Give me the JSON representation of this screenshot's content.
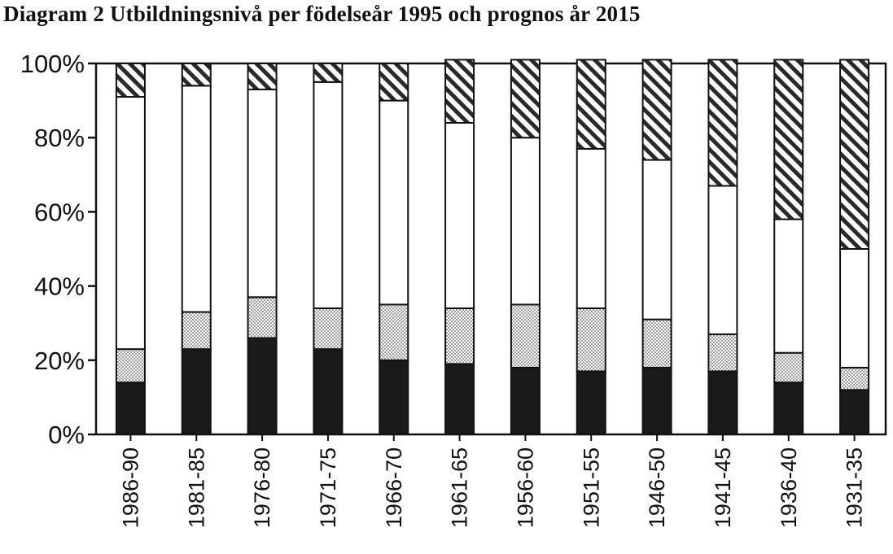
{
  "chart_data": {
    "type": "bar",
    "stacked": true,
    "title": "Diagram 2  Utbildningsnivå per födelseår 1995 och prognos år 2015",
    "xlabel": "",
    "ylabel": "",
    "ylim": [
      0,
      100
    ],
    "y_ticks": [
      "0%",
      "20%",
      "40%",
      "60%",
      "80%",
      "100%"
    ],
    "categories": [
      "1986-90",
      "1981-85",
      "1976-80",
      "1971-75",
      "1966-70",
      "1961-65",
      "1956-60",
      "1951-55",
      "1946-50",
      "1941-45",
      "1936-40",
      "1931-35"
    ],
    "series": [
      {
        "values": [
          14,
          23,
          26,
          23,
          20,
          19,
          18,
          17,
          18,
          17,
          14,
          12
        ],
        "color": "#1a1a1a",
        "pattern": "solid"
      },
      {
        "values": [
          9,
          10,
          11,
          11,
          15,
          15,
          17,
          17,
          13,
          10,
          8,
          6
        ],
        "color": "#dddddd",
        "pattern": "dotted"
      },
      {
        "values": [
          68,
          61,
          56,
          61,
          55,
          50,
          45,
          43,
          43,
          40,
          36,
          32
        ],
        "color": "#ffffff",
        "pattern": "blank"
      },
      {
        "values": [
          9,
          6,
          7,
          5,
          10,
          17,
          21,
          24,
          27,
          34,
          43,
          51
        ],
        "color": "#333333",
        "pattern": "hatched"
      }
    ],
    "grid": false,
    "legend": "none"
  }
}
